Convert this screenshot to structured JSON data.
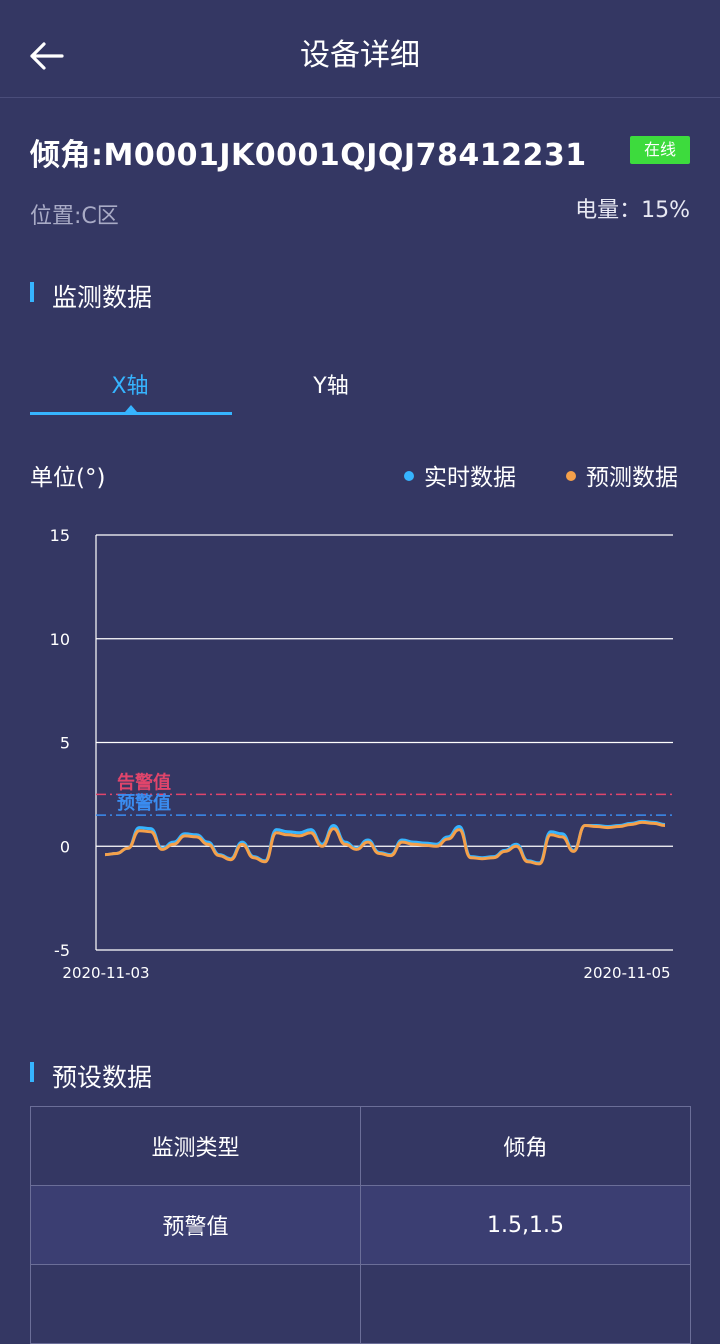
{
  "header": {
    "title": "设备详细",
    "back_icon": "arrow-left-icon"
  },
  "device": {
    "name": "倾角:M0001JK0001QJQJ78412231",
    "status": "在线",
    "status_color": "#3ddb3d",
    "location": "位置:C区",
    "battery": "电量：15%"
  },
  "monitor": {
    "section_title": "监测数据",
    "tabs": [
      {
        "label": "X轴",
        "active": true
      },
      {
        "label": "Y轴",
        "active": false
      }
    ],
    "unit": "单位(°)",
    "legend": [
      {
        "label": "实时数据",
        "color": "#36b4ff"
      },
      {
        "label": "预测数据",
        "color": "#f5a04a"
      }
    ]
  },
  "chart_data": {
    "type": "line",
    "x_start_label": "2020-11-03",
    "x_end_label": "2020-11-05",
    "ylim": [
      -5,
      15
    ],
    "yticks": [
      "15",
      "10",
      "5",
      "0",
      "-5"
    ],
    "grid": true,
    "thresholds": [
      {
        "label": "告警值",
        "value": 2.5,
        "color": "#e0456b"
      },
      {
        "label": "预警值",
        "value": 1.5,
        "color": "#3a8cf0"
      }
    ],
    "series": [
      {
        "name": "实时数据",
        "color": "#36b4ff",
        "values": [
          -0.4,
          -0.35,
          -0.1,
          0.9,
          0.85,
          -0.1,
          0.2,
          0.6,
          0.55,
          0.2,
          -0.4,
          -0.6,
          0.2,
          -0.5,
          -0.7,
          0.8,
          0.7,
          0.65,
          0.8,
          0.1,
          1.0,
          0.2,
          -0.1,
          0.3,
          -0.3,
          -0.4,
          0.3,
          0.2,
          0.15,
          0.1,
          0.45,
          0.95,
          -0.5,
          -0.55,
          -0.5,
          -0.2,
          0.1,
          -0.7,
          -0.8,
          0.7,
          0.6,
          -0.2,
          1.0,
          1.0,
          0.95,
          1.0,
          1.1,
          1.2,
          1.15,
          1.05
        ]
      },
      {
        "name": "预测数据",
        "color": "#f5a04a",
        "values": [
          -0.4,
          -0.35,
          -0.1,
          0.75,
          0.7,
          -0.15,
          0.1,
          0.5,
          0.45,
          0.1,
          -0.45,
          -0.65,
          0.1,
          -0.55,
          -0.75,
          0.65,
          0.55,
          0.5,
          0.65,
          0.0,
          0.85,
          0.1,
          -0.15,
          0.2,
          -0.35,
          -0.45,
          0.2,
          0.1,
          0.05,
          0.0,
          0.35,
          0.8,
          -0.55,
          -0.6,
          -0.55,
          -0.25,
          0.0,
          -0.75,
          -0.85,
          0.55,
          0.45,
          -0.25,
          1.0,
          0.95,
          0.9,
          0.95,
          1.05,
          1.15,
          1.1,
          1.0
        ]
      }
    ]
  },
  "preset": {
    "section_title": "预设数据",
    "rows": [
      {
        "key": "监测类型",
        "value": "倾角"
      },
      {
        "key": "预警值",
        "value": "1.5,1.5"
      },
      {
        "key": "",
        "value": ""
      }
    ]
  }
}
